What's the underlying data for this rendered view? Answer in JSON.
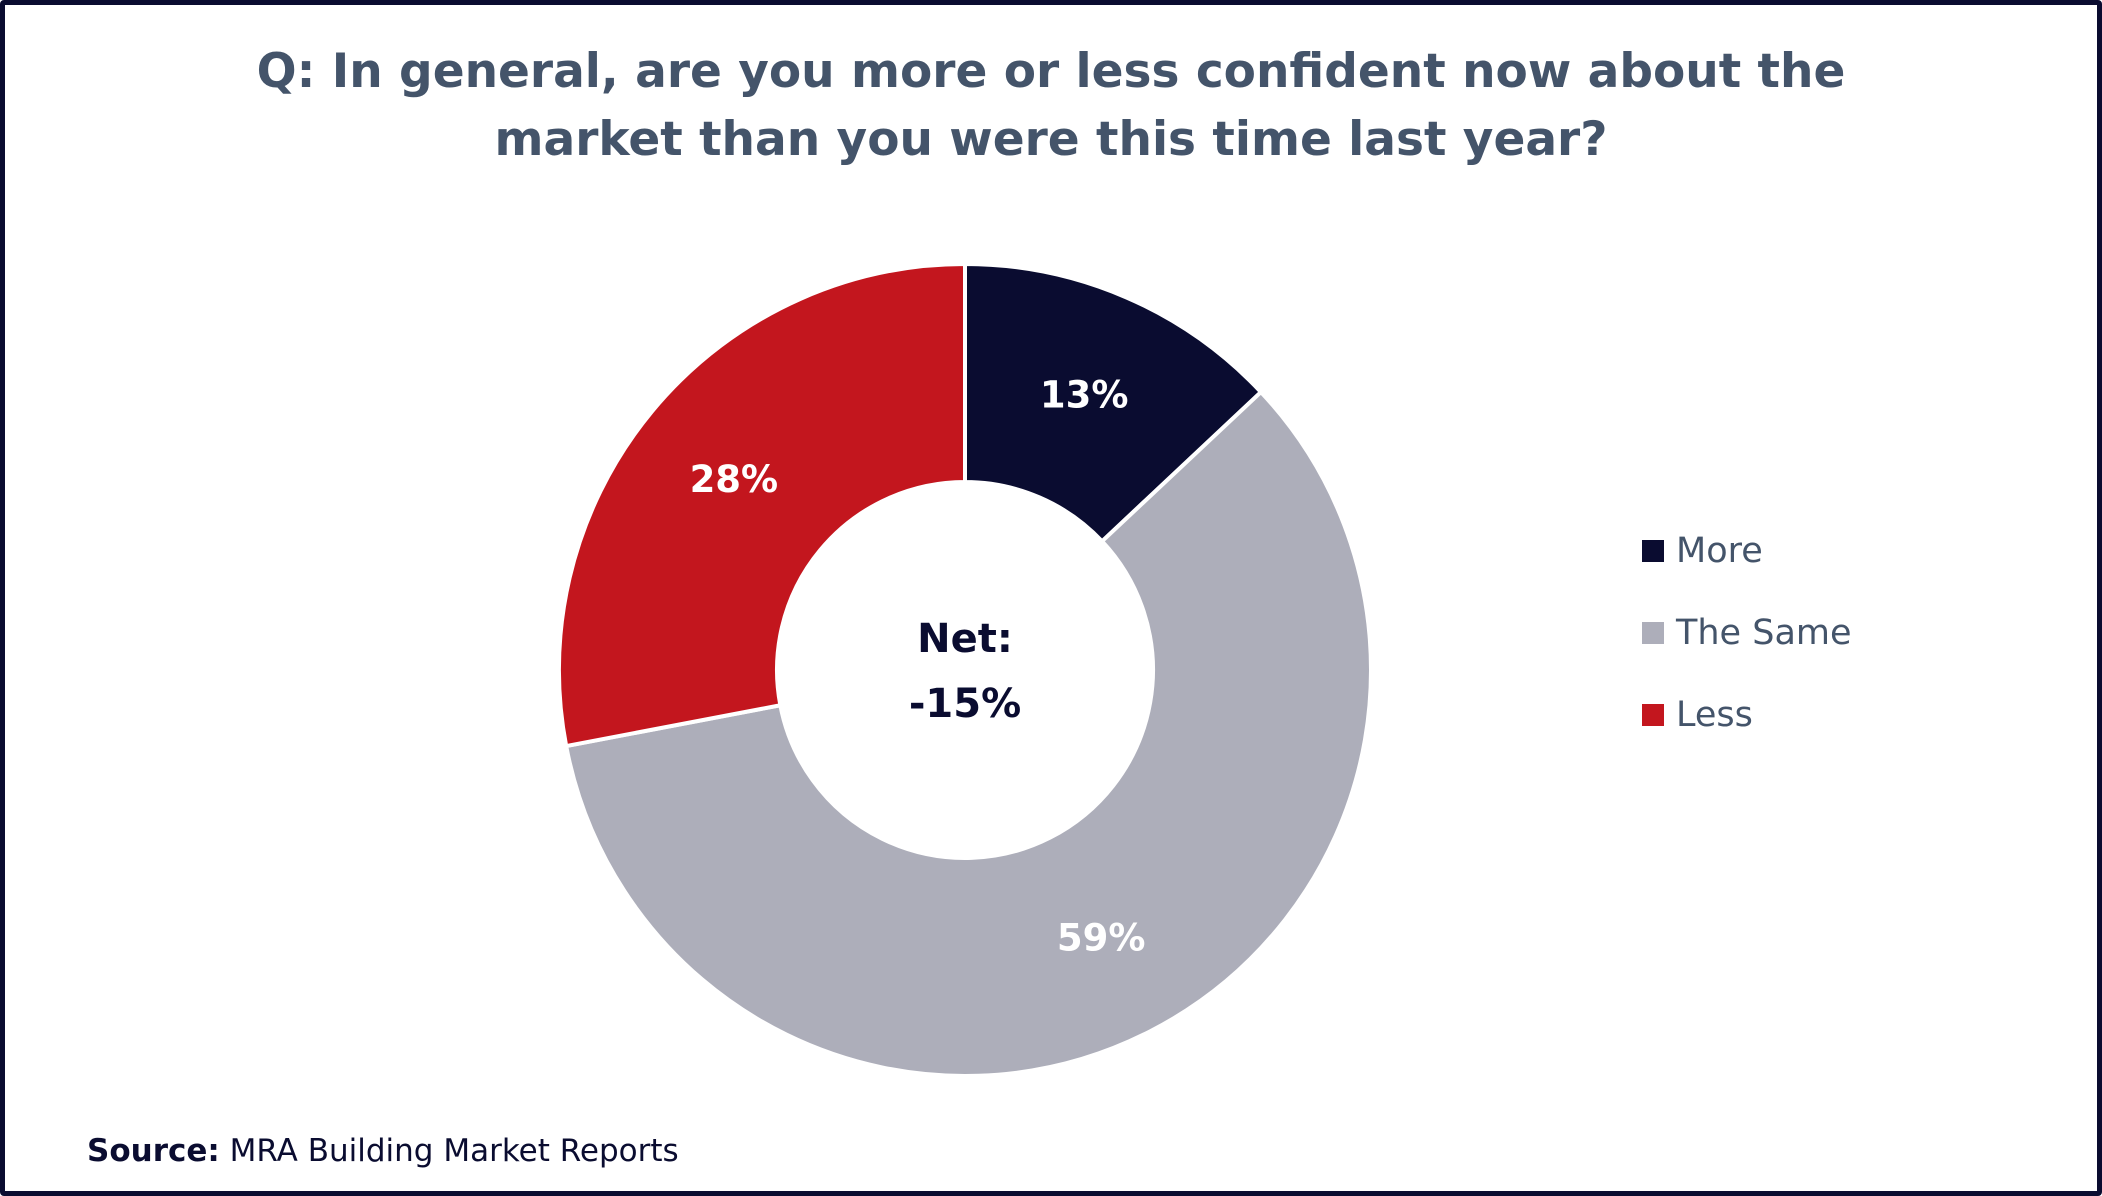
{
  "chart_data": {
    "type": "pie",
    "variant": "donut",
    "title": "Q: In general, are you more or less confident now about the market than you were this time last year?",
    "title_lines": [
      "Q: In general, are you more or less confident now about the",
      "market than you were this time last year?"
    ],
    "categories": [
      "More",
      "The Same",
      "Less"
    ],
    "values": [
      13,
      59,
      28
    ],
    "data_labels": [
      "13%",
      "59%",
      "28%"
    ],
    "colors": [
      "#0a0c30",
      "#adaeba",
      "#c3161e"
    ],
    "center_label": [
      "Net:",
      "-15%"
    ],
    "legend_position": "right"
  },
  "source": {
    "label": "Source:",
    "text": "MRA Building Market Reports"
  }
}
